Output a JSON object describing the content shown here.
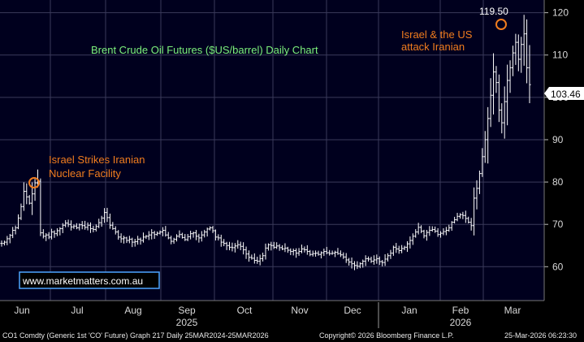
{
  "chart_data": {
    "type": "ohlc",
    "title": "Brent Crude Oil Futures ($US/barrel) Daily Chart",
    "x_months": [
      "Jun",
      "Jul",
      "Aug",
      "Sep",
      "Oct",
      "Nov",
      "Dec",
      "Jan",
      "Feb",
      "Mar"
    ],
    "x_years": [
      "2025",
      "2026"
    ],
    "y_ticks": [
      60,
      70,
      80,
      90,
      100,
      110,
      120
    ],
    "ylim": [
      52,
      123
    ],
    "grid": true,
    "colors": {
      "background": "#00001e",
      "grid": "#3a3a5a",
      "bars": "#ffffff",
      "annotation": "#f07c1e",
      "title": "#7cf07c",
      "watermark_border": "#4da6ff"
    },
    "last_price": "103.46",
    "peak_label": "119.50",
    "annotations": [
      {
        "text": "Israel Strikes Iranian",
        "text2": "Nuclear Facility",
        "date": "2025-06-13",
        "value": 81.4
      },
      {
        "text": "Israel & the US",
        "text2": "attack Iranian",
        "date": "2026-03-02",
        "value": 119.5
      }
    ],
    "watermark": "www.marketmatters.com.au",
    "footer": {
      "left": "CO1 Comdty (Generic 1st 'CO' Future) Graph 217 Daily 25MAR2024-25MAR2026",
      "center": "Copyright© 2026 Bloomberg Finance L.P.",
      "right": "25-Mar-2026 06:23:30"
    },
    "closes": [
      65.5,
      65.8,
      66.6,
      67.4,
      68.6,
      69.2,
      71.5,
      74.2,
      77.8,
      76.5,
      75.0,
      77.2,
      79.8,
      80.2,
      68.0,
      67.2,
      67.5,
      67.0,
      68.2,
      67.8,
      68.5,
      69.0,
      69.8,
      70.3,
      70.0,
      69.4,
      69.6,
      69.2,
      69.9,
      69.7,
      69.3,
      69.8,
      69.0,
      68.8,
      69.5,
      70.4,
      71.5,
      72.8,
      71.6,
      69.8,
      69.0,
      68.2,
      67.0,
      66.6,
      66.8,
      66.2,
      66.5,
      65.8,
      65.9,
      66.5,
      66.2,
      67.0,
      67.2,
      67.5,
      68.0,
      67.6,
      67.9,
      68.2,
      68.6,
      67.5,
      66.8,
      66.0,
      66.5,
      67.2,
      67.6,
      66.9,
      66.4,
      67.1,
      67.8,
      68.0,
      67.2,
      66.8,
      67.5,
      68.2,
      68.9,
      69.2,
      68.5,
      67.0,
      66.8,
      65.8,
      65.5,
      65.0,
      64.6,
      64.5,
      64.9,
      65.2,
      64.8,
      64.0,
      63.0,
      62.2,
      62.0,
      61.5,
      61.3,
      61.9,
      62.6,
      64.4,
      65.2,
      65.0,
      64.6,
      64.9,
      64.5,
      64.2,
      64.4,
      63.9,
      63.6,
      63.8,
      63.2,
      63.6,
      64.2,
      64.0,
      63.6,
      62.9,
      63.1,
      63.2,
      62.9,
      63.3,
      63.6,
      63.3,
      63.1,
      63.2,
      63.4,
      63.1,
      62.8,
      62.3,
      61.6,
      61.1,
      60.7,
      60.3,
      60.1,
      60.7,
      61.3,
      61.9,
      61.8,
      61.3,
      61.6,
      61.9,
      61.2,
      61.0,
      61.8,
      62.6,
      63.2,
      64.6,
      64.2,
      63.8,
      64.3,
      64.6,
      65.4,
      66.2,
      67.2,
      68.2,
      69.3,
      68.4,
      67.3,
      68.1,
      68.6,
      68.8,
      68.4,
      67.6,
      67.9,
      68.3,
      68.6,
      69.2,
      70.5,
      71.1,
      71.9,
      72.3,
      72.1,
      71.4,
      70.5,
      69.7,
      76.2,
      78.5,
      82.0,
      86.0,
      90.0,
      95.0,
      100.5,
      106.0,
      103.5,
      97.0,
      94.0,
      99.0,
      104.0,
      107.0,
      110.5,
      113.0,
      109.0,
      112.5,
      115.0,
      107.0,
      103.0
    ],
    "series": [
      {
        "name": "CO1 Comdty",
        "type": "ohlc"
      }
    ]
  }
}
